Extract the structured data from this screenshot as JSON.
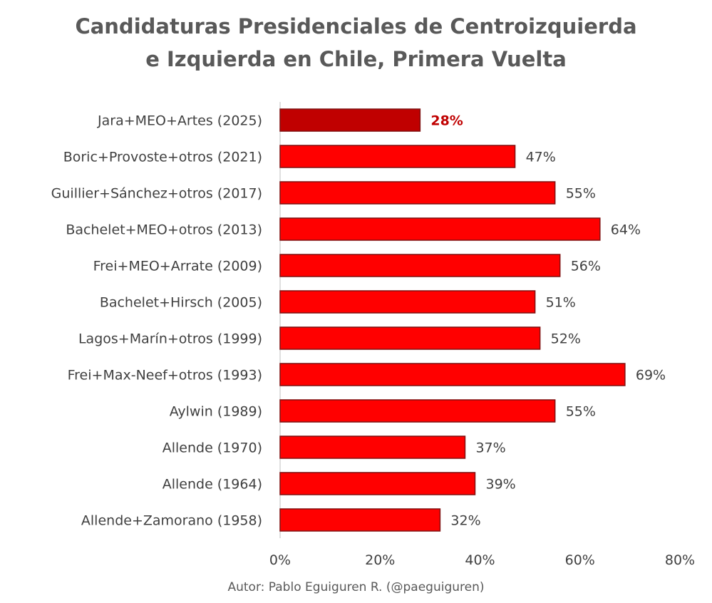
{
  "title_line1": "Candidaturas Presidenciales de Centroizquierda",
  "title_line2": "e Izquierda en Chile, Primera Vuelta",
  "author": "Autor: Pablo Eguiguren R. (@paeguiguren)",
  "colors": {
    "bar": "#ff0000",
    "bar_highlight": "#c00000",
    "bar_border": "#7f1010",
    "highlight_label": "#c00000",
    "text": "#404040",
    "axis": "#bfbfbf"
  },
  "chart_data": {
    "type": "bar",
    "orientation": "horizontal",
    "title": "Candidaturas Presidenciales de Centroizquierda e Izquierda en Chile, Primera Vuelta",
    "xlabel": "",
    "ylabel": "",
    "categories": [
      "Jara+MEO+Artes (2025)",
      "Boric+Provoste+otros (2021)",
      "Guillier+Sánchez+otros (2017)",
      "Bachelet+MEO+otros (2013)",
      "Frei+MEO+Arrate (2009)",
      "Bachelet+Hirsch (2005)",
      "Lagos+Marín+otros (1999)",
      "Frei+Max-Neef+otros (1993)",
      "Aylwin (1989)",
      "Allende (1970)",
      "Allende (1964)",
      "Allende+Zamorano (1958)"
    ],
    "values": [
      28,
      47,
      55,
      64,
      56,
      51,
      52,
      69,
      55,
      37,
      39,
      32
    ],
    "value_labels": [
      "28%",
      "47%",
      "55%",
      "64%",
      "56%",
      "51%",
      "52%",
      "69%",
      "55%",
      "37%",
      "39%",
      "32%"
    ],
    "highlight_index": 0,
    "xlim": [
      0,
      80
    ],
    "xticks": [
      0,
      20,
      40,
      60,
      80
    ],
    "xtick_labels": [
      "0%",
      "20%",
      "40%",
      "60%",
      "80%"
    ],
    "grid": false,
    "legend": false
  }
}
